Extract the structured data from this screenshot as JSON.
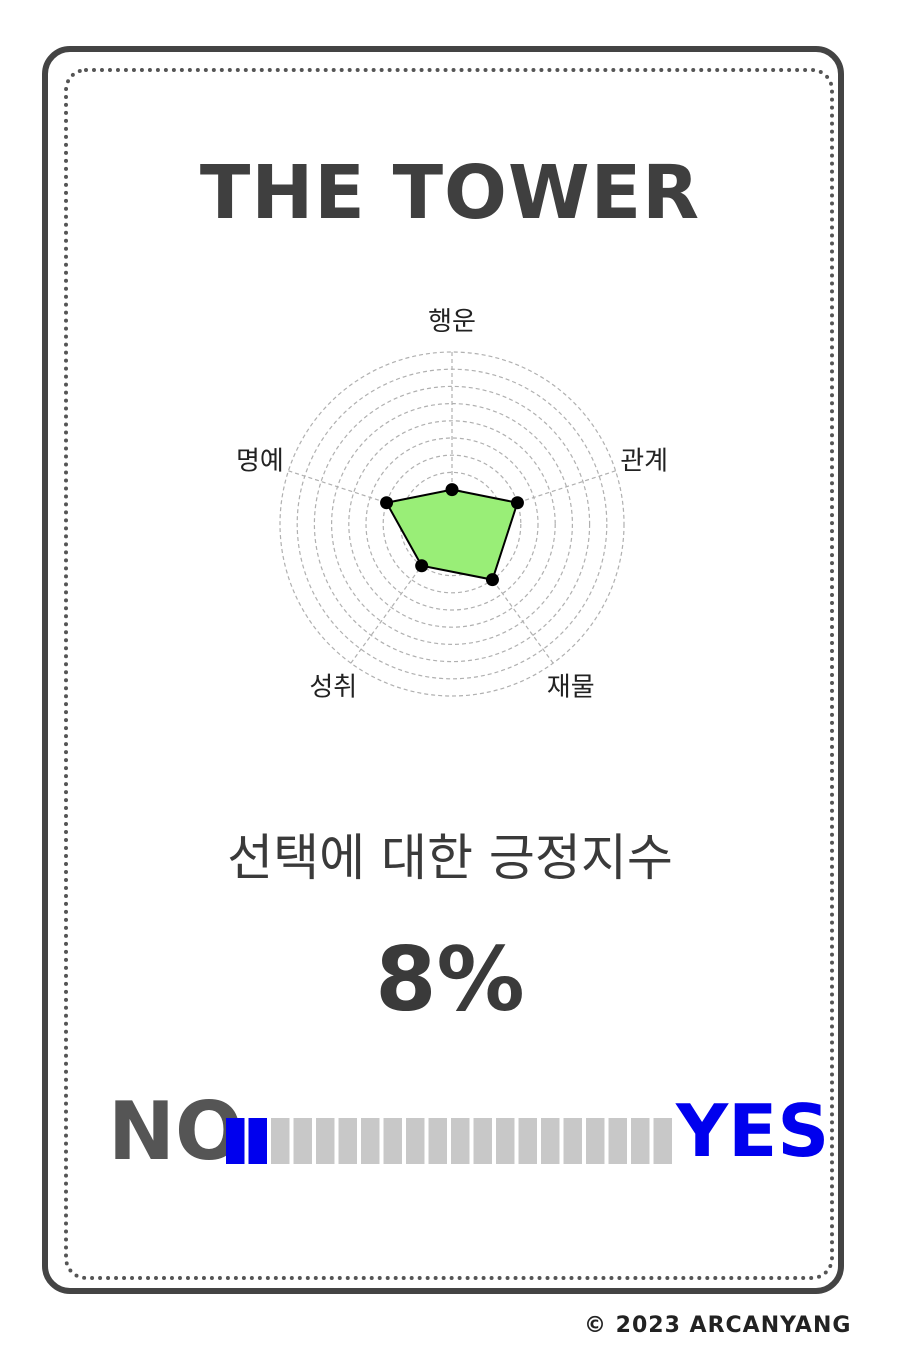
{
  "card": {
    "title": "THE TOWER",
    "subtitle": "선택에 대한 긍정지수",
    "percent_text": "8%",
    "no_label": "NO",
    "yes_label": "YES",
    "copyright": "© 2023 ARCANYANG"
  },
  "colors": {
    "radar_fill": "#99ee77",
    "grid": "#b0b0b0",
    "meter_on": "#0000ee",
    "meter_off": "#c8c8c8",
    "yes": "#0000ee",
    "no": "#555555"
  },
  "chart_data": [
    {
      "type": "radar",
      "axes": [
        "행운",
        "관계",
        "재물",
        "성취",
        "명예"
      ],
      "values": [
        2,
        4,
        4,
        3,
        4
      ],
      "rmax": 10,
      "rings": 10,
      "grid": true
    },
    {
      "type": "meter",
      "value": 8,
      "max": 100,
      "segments": 20,
      "filled_segments": 2
    }
  ]
}
